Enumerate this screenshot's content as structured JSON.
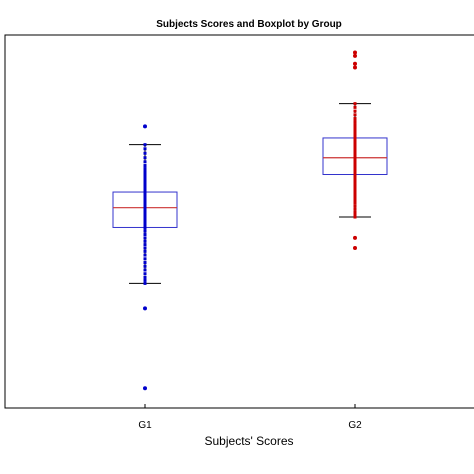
{
  "chart_data": {
    "type": "boxplot",
    "title": "Subjects Scores and Boxplot by Group",
    "xlabel": "Subjects' Scores",
    "ylabel": "",
    "categories": [
      "G1",
      "G2"
    ],
    "ylim": [
      0,
      100
    ],
    "grid": false,
    "legend": "none",
    "series": [
      {
        "category": "G1",
        "color": "#0000cc",
        "box_color": "#3333cc",
        "median_color": "#cc3333",
        "whisker_low": 33.4,
        "q1": 48.4,
        "median": 53.7,
        "q3": 57.9,
        "whisker_high": 70.6,
        "points": [
          70.6,
          69.5,
          68.3,
          67.1,
          66.0,
          65.0,
          64.2,
          63.4,
          62.6,
          62.0,
          61.4,
          60.8,
          60.2,
          59.7,
          59.2,
          58.7,
          58.2,
          57.7,
          57.2,
          56.7,
          56.2,
          55.7,
          55.2,
          54.8,
          54.4,
          54.0,
          53.6,
          53.2,
          52.8,
          52.4,
          52.0,
          51.6,
          51.2,
          50.8,
          50.3,
          49.8,
          49.3,
          48.8,
          48.2,
          47.4,
          46.5,
          45.6,
          44.7,
          43.8,
          42.9,
          42.0,
          41.0,
          40.0,
          39.0,
          38.0,
          37.0,
          36.0,
          35.0,
          34.2,
          33.4
        ],
        "outliers": [
          75.5,
          26.7,
          5.3
        ]
      },
      {
        "category": "G2",
        "color": "#cc0000",
        "box_color": "#3333cc",
        "median_color": "#cc3333",
        "whisker_low": 51.2,
        "q1": 62.6,
        "median": 67.1,
        "q3": 72.4,
        "whisker_high": 81.6,
        "points": [
          81.6,
          80.6,
          79.6,
          78.6,
          77.6,
          76.8,
          76.0,
          75.2,
          74.4,
          73.6,
          72.9,
          72.2,
          71.6,
          71.0,
          70.4,
          69.8,
          69.2,
          68.6,
          68.0,
          67.5,
          67.0,
          66.5,
          66.0,
          65.5,
          65.0,
          64.5,
          64.0,
          63.5,
          63.0,
          62.5,
          62.0,
          61.3,
          60.6,
          59.9,
          59.2,
          58.5,
          57.8,
          57.1,
          56.4,
          55.7,
          55.0,
          54.2,
          53.4,
          52.6,
          51.9,
          51.2
        ],
        "outliers": [
          95.3,
          94.4,
          92.3,
          91.3,
          45.6,
          42.9
        ]
      }
    ]
  }
}
